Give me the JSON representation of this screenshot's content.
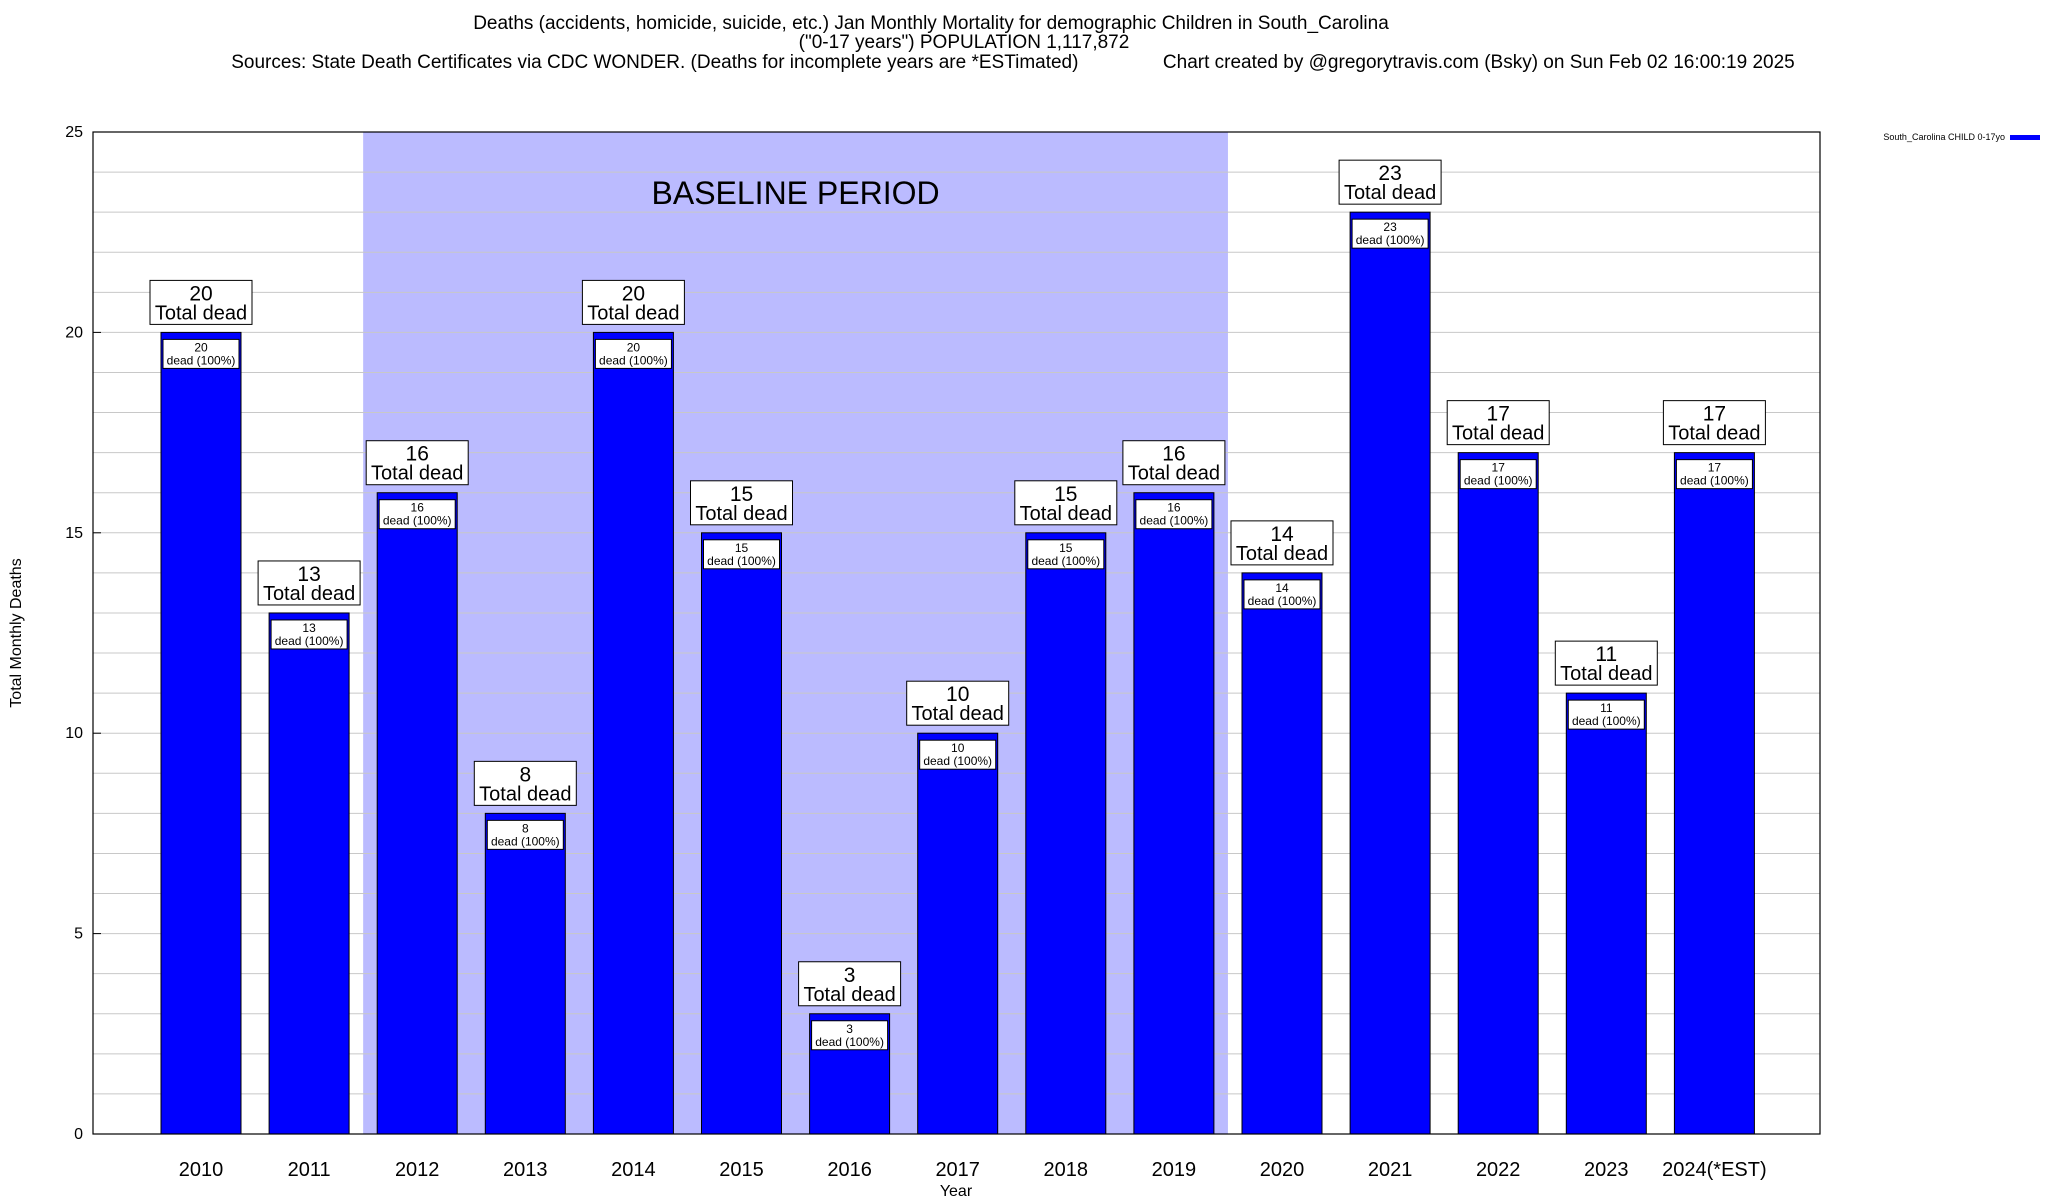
{
  "header": {
    "line1": "Deaths (accidents, homicide, suicide, etc.) Jan Monthly Mortality for demographic Children in South_Carolina",
    "line2": "(\"0-17 years\") POPULATION 1,117,872",
    "line3": "Sources: State Death Certificates via CDC WONDER. (Deaths for incomplete years are *ESTimated)                Chart created by @gregorytravis.com (Bsky) on Sun Feb 02 16:00:19 2025"
  },
  "chart_data": {
    "type": "bar",
    "title": "Deaths (accidents, homicide, suicide, etc.) Jan Monthly Mortality for demographic Children in South_Carolina",
    "xlabel": "Year",
    "ylabel": "Total Monthly Deaths",
    "ylim": [
      0,
      25
    ],
    "yticks": [
      0,
      5,
      10,
      15,
      20,
      25
    ],
    "grid": true,
    "legend_position": "top-right",
    "categories": [
      "2010",
      "2011",
      "2012",
      "2013",
      "2014",
      "2015",
      "2016",
      "2017",
      "2018",
      "2019",
      "2020",
      "2021",
      "2022",
      "2023",
      "2024(*EST)"
    ],
    "series": [
      {
        "name": "South_Carolina CHILD 0-17yo",
        "color": "#0000ff",
        "values": [
          20,
          13,
          16,
          8,
          20,
          15,
          3,
          10,
          15,
          16,
          14,
          23,
          17,
          11,
          17
        ]
      }
    ],
    "total_label": "Total dead",
    "inner_label_suffix": "dead (100%)",
    "baseline": {
      "label": "BASELINE PERIOD",
      "from": "2012",
      "to": "2019",
      "color": "#bbbbff"
    }
  }
}
